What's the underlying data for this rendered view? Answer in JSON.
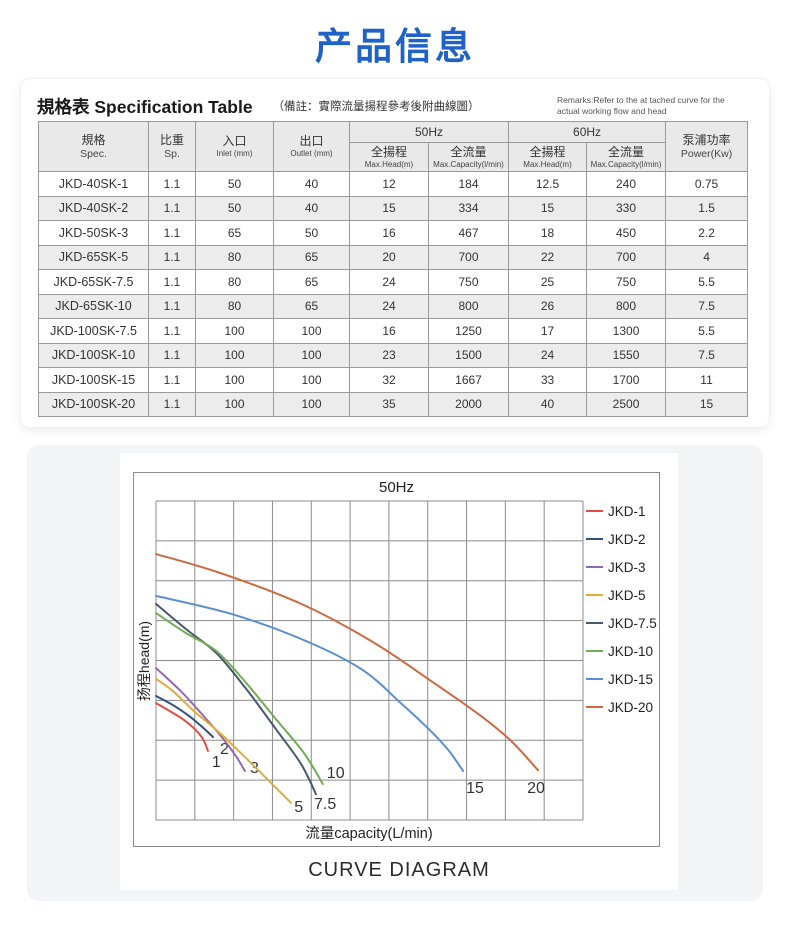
{
  "page": {
    "title": "产品信息"
  },
  "spec_section": {
    "title_zh": "規格表",
    "title_en": "Specification Table",
    "remark_zh": "（備註：實際流量揚程參考後附曲線圖）",
    "remark_en_line1": "Remarks:Refer to the at tached curve for the",
    "remark_en_line2": "actual working flow and head",
    "table": {
      "columns": [
        {
          "zh": "規格",
          "en": "Spec."
        },
        {
          "zh": "比重",
          "en": "Sp."
        },
        {
          "zh": "入口",
          "en": "Inlet (mm)"
        },
        {
          "zh": "出口",
          "en": "Outlet (mm)"
        },
        {
          "zh": "泵浦功率",
          "en": "Power(Kw)"
        }
      ],
      "groups": [
        {
          "label": "50Hz",
          "sub": [
            {
              "zh": "全揚程",
              "en": "Max.Head(m)"
            },
            {
              "zh": "全流量",
              "en": "Max.Capacity(l/min)"
            }
          ]
        },
        {
          "label": "60Hz",
          "sub": [
            {
              "zh": "全揚程",
              "en": "Max.Head(m)"
            },
            {
              "zh": "全流量",
              "en": "Max.Capacity(l/min)"
            }
          ]
        }
      ],
      "rows": [
        [
          "JKD-40SK-1",
          "1.1",
          "50",
          "40",
          "12",
          "184",
          "12.5",
          "240",
          "0.75"
        ],
        [
          "JKD-40SK-2",
          "1.1",
          "50",
          "40",
          "15",
          "334",
          "15",
          "330",
          "1.5"
        ],
        [
          "JKD-50SK-3",
          "1.1",
          "65",
          "50",
          "16",
          "467",
          "18",
          "450",
          "2.2"
        ],
        [
          "JKD-65SK-5",
          "1.1",
          "80",
          "65",
          "20",
          "700",
          "22",
          "700",
          "4"
        ],
        [
          "JKD-65SK-7.5",
          "1.1",
          "80",
          "65",
          "24",
          "750",
          "25",
          "750",
          "5.5"
        ],
        [
          "JKD-65SK-10",
          "1.1",
          "80",
          "65",
          "24",
          "800",
          "26",
          "800",
          "7.5"
        ],
        [
          "JKD-100SK-7.5",
          "1.1",
          "100",
          "100",
          "16",
          "1250",
          "17",
          "1300",
          "5.5"
        ],
        [
          "JKD-100SK-10",
          "1.1",
          "100",
          "100",
          "23",
          "1500",
          "24",
          "1550",
          "7.5"
        ],
        [
          "JKD-100SK-15",
          "1.1",
          "100",
          "100",
          "32",
          "1667",
          "33",
          "1700",
          "11"
        ],
        [
          "JKD-100SK-20",
          "1.1",
          "100",
          "100",
          "35",
          "2000",
          "40",
          "2500",
          "15"
        ]
      ]
    }
  },
  "curve_section": {
    "caption": "CURVE DIAGRAM"
  },
  "chart_data": {
    "type": "line",
    "title": "50Hz",
    "xlabel": "流量capacity(L/min)",
    "ylabel": "扬程head(m)",
    "legend_position": "right",
    "grid": {
      "on": true,
      "columns": 11,
      "rows": 8,
      "color": "#8c8c8c"
    },
    "axis_note": "axes unlabeled; x in grid columns (flow), y in grid rows (head, downward)",
    "series": [
      {
        "name": "JKD-1",
        "color": "#e04d45",
        "label": "1",
        "label_pos": [
          1.44,
          6.67
        ],
        "points": [
          [
            0,
            5.07
          ],
          [
            0.39,
            5.29
          ],
          [
            0.72,
            5.49
          ],
          [
            1.0,
            5.72
          ],
          [
            1.21,
            5.97
          ],
          [
            1.34,
            6.27
          ]
        ]
      },
      {
        "name": "JKD-2",
        "color": "#33507c",
        "label": "2",
        "label_pos": [
          1.65,
          6.34
        ],
        "points": [
          [
            0,
            4.89
          ],
          [
            0.44,
            5.12
          ],
          [
            0.85,
            5.39
          ],
          [
            1.16,
            5.64
          ],
          [
            1.47,
            5.92
          ]
        ]
      },
      {
        "name": "JKD-3",
        "color": "#9467b4",
        "label": "3",
        "label_pos": [
          2.42,
          6.82
        ],
        "points": [
          [
            0,
            4.19
          ],
          [
            0.64,
            4.77
          ],
          [
            1.16,
            5.32
          ],
          [
            1.67,
            5.89
          ],
          [
            2.06,
            6.4
          ],
          [
            2.29,
            6.77
          ]
        ]
      },
      {
        "name": "JKD-5",
        "color": "#e2ab3a",
        "label": "5",
        "label_pos": [
          3.56,
          7.8
        ],
        "points": [
          [
            0,
            4.46
          ],
          [
            0.44,
            4.77
          ],
          [
            0.98,
            5.27
          ],
          [
            1.67,
            5.84
          ],
          [
            2.32,
            6.45
          ],
          [
            2.91,
            7.02
          ],
          [
            3.48,
            7.57
          ]
        ]
      },
      {
        "name": "JKD-7.5",
        "color": "#48586e",
        "label": "7.5",
        "label_pos": [
          4.07,
          7.72
        ],
        "points": [
          [
            0,
            2.58
          ],
          [
            0.77,
            3.21
          ],
          [
            1.55,
            3.81
          ],
          [
            2.32,
            4.71
          ],
          [
            3.09,
            5.72
          ],
          [
            3.74,
            6.6
          ],
          [
            4.12,
            7.35
          ]
        ]
      },
      {
        "name": "JKD-10",
        "color": "#74ab55",
        "label": "10",
        "label_pos": [
          4.4,
          6.95
        ],
        "points": [
          [
            0,
            2.81
          ],
          [
            0.77,
            3.31
          ],
          [
            1.55,
            3.76
          ],
          [
            2.32,
            4.56
          ],
          [
            3.09,
            5.47
          ],
          [
            3.81,
            6.32
          ],
          [
            4.3,
            7.1
          ]
        ]
      },
      {
        "name": "JKD-15",
        "color": "#5b8fce",
        "label": "15",
        "label_pos": [
          7.99,
          7.32
        ],
        "points": [
          [
            0,
            2.38
          ],
          [
            1.93,
            2.83
          ],
          [
            3.74,
            3.46
          ],
          [
            5.28,
            4.21
          ],
          [
            6.31,
            5.07
          ],
          [
            7.08,
            5.77
          ],
          [
            7.55,
            6.27
          ],
          [
            7.91,
            6.77
          ]
        ]
      },
      {
        "name": "JKD-20",
        "color": "#cb6a41",
        "label": "20",
        "label_pos": [
          9.56,
          7.32
        ],
        "points": [
          [
            0,
            1.33
          ],
          [
            1.67,
            1.81
          ],
          [
            3.74,
            2.58
          ],
          [
            5.54,
            3.51
          ],
          [
            7.08,
            4.51
          ],
          [
            8.37,
            5.39
          ],
          [
            9.15,
            6.02
          ],
          [
            9.84,
            6.75
          ]
        ]
      }
    ]
  }
}
